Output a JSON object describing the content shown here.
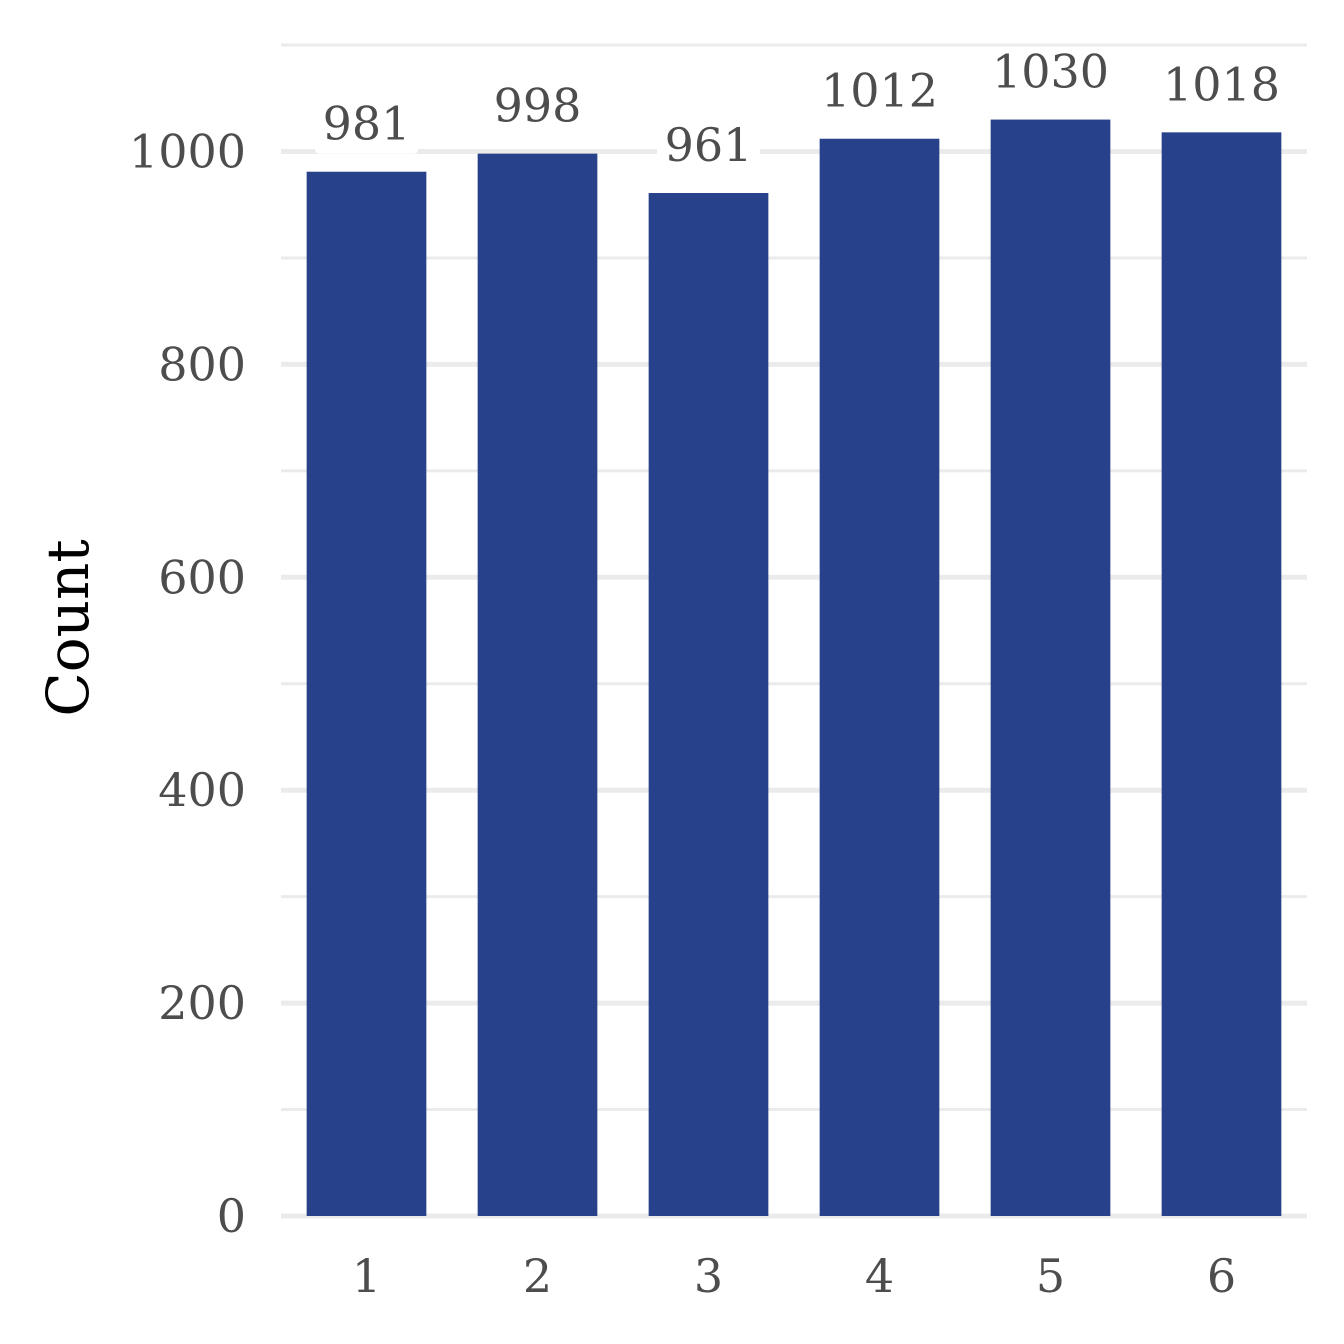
{
  "chart_data": {
    "type": "bar",
    "categories": [
      "1",
      "2",
      "3",
      "4",
      "5",
      "6"
    ],
    "values": [
      981,
      998,
      961,
      1012,
      1030,
      1018
    ],
    "data_labels": [
      "981",
      "998",
      "961",
      "1012",
      "1030",
      "1018"
    ],
    "title": "",
    "xlabel": "",
    "ylabel": "Count",
    "ylim": [
      0,
      1100
    ],
    "yticks": [
      0,
      200,
      400,
      600,
      800,
      1000
    ],
    "ytick_labels": [
      "0",
      "200",
      "400",
      "600",
      "800",
      "1000"
    ],
    "grid": true,
    "legend": "none",
    "bar_color": "#27418a",
    "grid_color": "#ebebeb",
    "label_background": "#ffffff"
  }
}
